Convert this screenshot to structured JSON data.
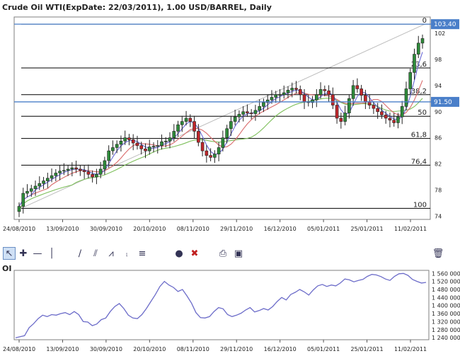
{
  "title": "Crude Oil WTI(ExpDate: 22/03/2011), 1.00 USD/BARREL, Daily",
  "oi_label": "OI",
  "toolbar": {
    "icons": [
      "arrow-pointer-icon",
      "crosshair-icon",
      "horizontal-line-icon",
      "vertical-line-icon",
      "trend-line-icon",
      "channel-icon",
      "fibonacci-fan-icon",
      "speed-lines-icon",
      "fibonacci-icon",
      "comment-icon",
      "delete-icon",
      "print-icon",
      "save-icon",
      "trash-icon"
    ]
  },
  "colors": {
    "up": "#2e8b3a",
    "down": "#c0262b",
    "ma_fast": "#6b6bd6",
    "ma_mid": "#d96b6b",
    "ma_slow": "#7dbf5a",
    "fib_line": "#000000",
    "price_line": "#4a7fc9",
    "oi_line": "#6c6cc9"
  },
  "chart_data": [
    {
      "type": "candlestick",
      "title": "Crude Oil WTI(ExpDate: 22/03/2011), 1.00 USD/BARREL, Daily",
      "x_ticks": [
        "24/08/2010",
        "13/09/2010",
        "30/09/2010",
        "20/10/2010",
        "08/11/2010",
        "29/11/2010",
        "16/12/2010",
        "05/01/2011",
        "25/01/2011",
        "11/02/2011"
      ],
      "y_ticks": [
        74,
        78,
        82,
        86,
        90,
        94,
        98,
        102
      ],
      "ylim": [
        73.5,
        104.5
      ],
      "fibonacci": {
        "levels": [
          {
            "label": "0",
            "price": 103.4
          },
          {
            "label": "23,6",
            "price": 96.7
          },
          {
            "label": "38,2",
            "price": 92.6
          },
          {
            "label": "50",
            "price": 89.3
          },
          {
            "label": "61,8",
            "price": 85.9
          },
          {
            "label": "76,4",
            "price": 81.8
          },
          {
            "label": "100",
            "price": 75.2
          }
        ]
      },
      "price_lines": [
        {
          "label": "103.40",
          "price": 103.4
        },
        {
          "label": "91.50",
          "price": 91.5
        }
      ],
      "close_series": [
        75.5,
        77.5,
        77.8,
        78.2,
        78.6,
        79.0,
        79.4,
        79.8,
        80.2,
        80.6,
        80.9,
        81.0,
        81.2,
        81.4,
        81.2,
        81.0,
        80.8,
        80.4,
        80.0,
        80.4,
        81.2,
        82.5,
        84.0,
        84.5,
        85.0,
        85.5,
        86.0,
        85.7,
        85.2,
        84.8,
        84.3,
        84.0,
        84.6,
        84.7,
        84.8,
        85.4,
        85.5,
        86.0,
        87.0,
        88.0,
        88.5,
        89.0,
        88.5,
        87.0,
        85.3,
        84.0,
        83.3,
        83.0,
        83.5,
        84.5,
        86.0,
        87.4,
        88.5,
        89.2,
        89.6,
        90.0,
        89.8,
        89.7,
        90.2,
        90.8,
        91.4,
        91.8,
        92.2,
        92.6,
        92.6,
        92.9,
        93.3,
        93.6,
        93.4,
        92.6,
        91.5,
        91.4,
        91.8,
        92.6,
        93.4,
        93.2,
        92.6,
        91.0,
        89.0,
        88.5,
        89.8,
        92.0,
        94.0,
        93.5,
        92.5,
        91.5,
        91.0,
        90.5,
        90.0,
        89.5,
        89.0,
        88.7,
        88.3,
        89.2,
        90.8,
        93.5,
        96.0,
        98.8,
        100.5,
        101.2
      ]
    },
    {
      "type": "line",
      "title": "OI",
      "x_ticks": [
        "24/08/2010",
        "13/09/2010",
        "30/09/2010",
        "20/10/2010",
        "08/11/2010",
        "29/11/2010",
        "16/12/2010",
        "05/01/2011",
        "25/01/2011",
        "11/02/2011"
      ],
      "y_ticks": [
        1240000,
        1280000,
        1320000,
        1360000,
        1400000,
        1440000,
        1480000,
        1520000,
        1560000
      ],
      "y_tick_labels": [
        "1 240 000",
        "1 280 000",
        "1 320 000",
        "1 360 000",
        "1 400 000",
        "1 440 000",
        "1 480 000",
        "1 520 000",
        "1 560 000"
      ],
      "ylim": [
        1230000,
        1575000
      ],
      "values": [
        1240000,
        1245000,
        1250000,
        1290000,
        1310000,
        1335000,
        1352000,
        1345000,
        1355000,
        1352000,
        1360000,
        1365000,
        1355000,
        1370000,
        1355000,
        1320000,
        1318000,
        1300000,
        1308000,
        1330000,
        1338000,
        1370000,
        1395000,
        1410000,
        1385000,
        1352000,
        1338000,
        1335000,
        1355000,
        1385000,
        1420000,
        1455000,
        1495000,
        1520000,
        1502000,
        1490000,
        1470000,
        1480000,
        1448000,
        1412000,
        1365000,
        1340000,
        1338000,
        1345000,
        1370000,
        1390000,
        1384000,
        1355000,
        1345000,
        1352000,
        1362000,
        1378000,
        1390000,
        1368000,
        1375000,
        1385000,
        1378000,
        1395000,
        1420000,
        1440000,
        1428000,
        1455000,
        1466000,
        1480000,
        1468000,
        1452000,
        1478000,
        1498000,
        1505000,
        1495000,
        1502000,
        1498000,
        1512000,
        1532000,
        1528000,
        1518000,
        1525000,
        1530000,
        1545000,
        1555000,
        1552000,
        1544000,
        1532000,
        1525000,
        1545000,
        1558000,
        1560000,
        1550000,
        1530000,
        1520000,
        1512000,
        1515000
      ]
    }
  ]
}
